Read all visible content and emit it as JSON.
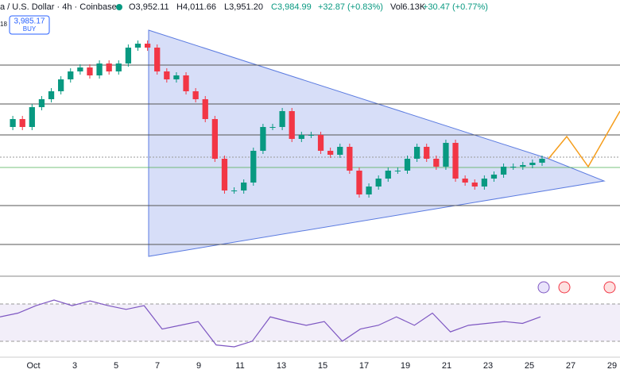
{
  "header": {
    "symbol": "a / U.S. Dollar · 4h · Coinbase",
    "open": "O3,952.11",
    "high": "H4,011.66",
    "low": "L3,951.20",
    "close": "C3,984.99",
    "change": "+32.87 (+0.83%)",
    "volume": "Vol6.13K",
    "volume_change": "+30.47 (+0.77%)"
  },
  "trade_box": {
    "price": "3,985.17",
    "action": "BUY",
    "side": "18"
  },
  "x_axis": {
    "labels": [
      "Oct",
      "3",
      "5",
      "7",
      "9",
      "11",
      "13",
      "15",
      "17",
      "19",
      "21",
      "23",
      "25",
      "27",
      "29"
    ]
  },
  "price_chart": {
    "type": "candlestick",
    "closes": [
      4185,
      4235,
      4185,
      4310,
      4360,
      4410,
      4485,
      4535,
      4560,
      4510,
      4585,
      4535,
      4585,
      4685,
      4710,
      4685,
      4535,
      4485,
      4510,
      4410,
      4360,
      4235,
      3985,
      3785,
      3785,
      3835,
      4035,
      4185,
      4185,
      4285,
      4110,
      4135,
      4135,
      4035,
      4010,
      4060,
      3910,
      3760,
      3810,
      3860,
      3910,
      3910,
      3985,
      4060,
      3985,
      3935,
      4085,
      3860,
      3835,
      3810,
      3860,
      3885,
      3935,
      3935,
      3945,
      3960,
      3985
    ],
    "up_color": "#089981",
    "down_color": "#f23645"
  },
  "rsi": {
    "type": "line",
    "values": [
      56,
      60,
      68,
      74,
      68,
      73,
      68,
      64,
      68,
      43,
      47,
      51,
      26,
      24,
      30,
      56,
      51,
      47,
      51,
      30,
      43,
      47,
      56,
      47,
      60,
      40,
      47,
      49,
      51,
      49,
      56
    ],
    "color": "#7e57c2"
  }
}
